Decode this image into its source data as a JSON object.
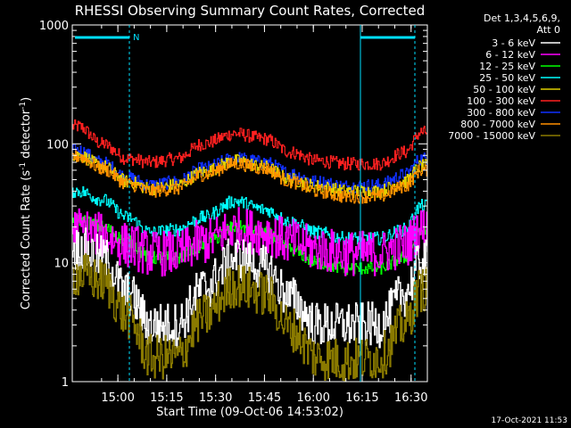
{
  "chart_data": {
    "type": "line",
    "title": "RHESSI Observing Summary Count Rates, Corrected",
    "xlabel": "Start Time (09-Oct-06 14:53:02)",
    "ylabel_main": "Corrected Count Rate (s",
    "ylabel_sup1": "-1",
    "ylabel_mid": " detector",
    "ylabel_sup2": "-1",
    "ylabel_end": ")",
    "y_scale": "log",
    "ylim": [
      1,
      1000
    ],
    "xlim_minutes_after_start": [
      -7,
      102
    ],
    "x_tick_labels": [
      "15:00",
      "15:15",
      "15:30",
      "15:45",
      "16:00",
      "16:15",
      "16:30"
    ],
    "x_tick_minutes": [
      7,
      22,
      37,
      52,
      67,
      82,
      97
    ],
    "y_tick_labels": [
      "1",
      "10",
      "100",
      "1000"
    ],
    "y_tick_values": [
      1,
      10,
      100,
      1000
    ],
    "legend_header": [
      "Det 1,3,4,5,6,9,",
      "Att 0"
    ],
    "series": [
      {
        "name": "3 - 6 keV",
        "color": "#ffffff"
      },
      {
        "name": "6 - 12 keV",
        "color": "#ff00ff"
      },
      {
        "name": "12 - 25 keV",
        "color": "#00ff00"
      },
      {
        "name": "25 - 50 keV",
        "color": "#00ffff"
      },
      {
        "name": "50 - 100 keV",
        "color": "#e0d000"
      },
      {
        "name": "100 - 300 keV",
        "color": "#ff2020"
      },
      {
        "name": "300 - 800 keV",
        "color": "#1030ff"
      },
      {
        "name": "800 - 7000 keV",
        "color": "#ff9000"
      },
      {
        "name": "7000 - 15000 keV",
        "color": "#8a7a00"
      }
    ],
    "plotted_series": [
      {
        "color": "#ff2020",
        "name_index": 5,
        "values": [
          [
            -5,
            140
          ],
          [
            2,
            100
          ],
          [
            10,
            75
          ],
          [
            17,
            70
          ],
          [
            25,
            75
          ],
          [
            33,
            100
          ],
          [
            43,
            122
          ],
          [
            52,
            110
          ],
          [
            60,
            85
          ],
          [
            68,
            72
          ],
          [
            77,
            68
          ],
          [
            87,
            68
          ],
          [
            95,
            85
          ],
          [
            100,
            125
          ]
        ]
      },
      {
        "color": "#1030ff",
        "name_index": 6,
        "values": [
          [
            -5,
            88
          ],
          [
            2,
            70
          ],
          [
            10,
            52
          ],
          [
            17,
            45
          ],
          [
            25,
            48
          ],
          [
            33,
            62
          ],
          [
            43,
            76
          ],
          [
            52,
            70
          ],
          [
            60,
            56
          ],
          [
            68,
            48
          ],
          [
            77,
            44
          ],
          [
            87,
            45
          ],
          [
            95,
            55
          ],
          [
            100,
            75
          ]
        ]
      },
      {
        "color": "#e0d000",
        "name_index": 4,
        "values": [
          [
            -5,
            80
          ],
          [
            2,
            65
          ],
          [
            10,
            48
          ],
          [
            17,
            42
          ],
          [
            25,
            45
          ],
          [
            33,
            58
          ],
          [
            43,
            72
          ],
          [
            52,
            64
          ],
          [
            60,
            50
          ],
          [
            68,
            44
          ],
          [
            77,
            40
          ],
          [
            87,
            40
          ],
          [
            95,
            48
          ],
          [
            100,
            65
          ]
        ]
      },
      {
        "color": "#ff9000",
        "name_index": 7,
        "values": [
          [
            -5,
            78
          ],
          [
            2,
            62
          ],
          [
            10,
            46
          ],
          [
            17,
            40
          ],
          [
            25,
            42
          ],
          [
            33,
            55
          ],
          [
            43,
            68
          ],
          [
            52,
            62
          ],
          [
            60,
            48
          ],
          [
            68,
            40
          ],
          [
            77,
            36
          ],
          [
            87,
            36
          ],
          [
            95,
            44
          ],
          [
            100,
            60
          ]
        ]
      },
      {
        "color": "#00ffff",
        "name_index": 3,
        "values": [
          [
            -5,
            40
          ],
          [
            2,
            34
          ],
          [
            10,
            24
          ],
          [
            17,
            18
          ],
          [
            25,
            19
          ],
          [
            33,
            24
          ],
          [
            43,
            33
          ],
          [
            52,
            28
          ],
          [
            60,
            22
          ],
          [
            68,
            18
          ],
          [
            77,
            16
          ],
          [
            87,
            16
          ],
          [
            95,
            19
          ],
          [
            100,
            30
          ]
        ]
      },
      {
        "color": "#00ff00",
        "name_index": 2,
        "values": [
          [
            -5,
            23
          ],
          [
            2,
            20
          ],
          [
            10,
            15
          ],
          [
            17,
            11
          ],
          [
            25,
            11
          ],
          [
            33,
            14
          ],
          [
            43,
            20
          ],
          [
            52,
            18
          ],
          [
            60,
            13
          ],
          [
            68,
            10
          ],
          [
            77,
            9
          ],
          [
            87,
            9
          ],
          [
            95,
            11
          ],
          [
            100,
            18
          ]
        ]
      },
      {
        "color": "#ff00ff",
        "name_index": 1,
        "values": [
          [
            -5,
            19
          ],
          [
            2,
            17
          ],
          [
            10,
            14
          ],
          [
            17,
            12
          ],
          [
            25,
            12
          ],
          [
            33,
            15
          ],
          [
            43,
            19
          ],
          [
            52,
            18
          ],
          [
            60,
            15
          ],
          [
            68,
            13
          ],
          [
            77,
            12
          ],
          [
            87,
            12
          ],
          [
            95,
            14
          ],
          [
            100,
            19
          ]
        ]
      },
      {
        "color": "#ffffff",
        "name_index": 0,
        "values": [
          [
            -5,
            13
          ],
          [
            2,
            11
          ],
          [
            10,
            5.5
          ],
          [
            17,
            3
          ],
          [
            25,
            3
          ],
          [
            33,
            6
          ],
          [
            43,
            11
          ],
          [
            52,
            9
          ],
          [
            60,
            5
          ],
          [
            68,
            3
          ],
          [
            77,
            3
          ],
          [
            87,
            3
          ],
          [
            95,
            5.5
          ],
          [
            100,
            10
          ]
        ]
      },
      {
        "color": "#8a7a00",
        "name_index": 8,
        "values": [
          [
            -5,
            8
          ],
          [
            2,
            7
          ],
          [
            10,
            3.5
          ],
          [
            17,
            1.6
          ],
          [
            25,
            1.6
          ],
          [
            33,
            3.5
          ],
          [
            43,
            6.5
          ],
          [
            52,
            5.5
          ],
          [
            60,
            2.8
          ],
          [
            68,
            1.6
          ],
          [
            77,
            1.5
          ],
          [
            87,
            1.6
          ],
          [
            95,
            3
          ],
          [
            100,
            6
          ]
        ]
      }
    ],
    "annotations": [
      {
        "text": "N"
      }
    ],
    "footer_date": "17-Oct-2021 11:53"
  }
}
